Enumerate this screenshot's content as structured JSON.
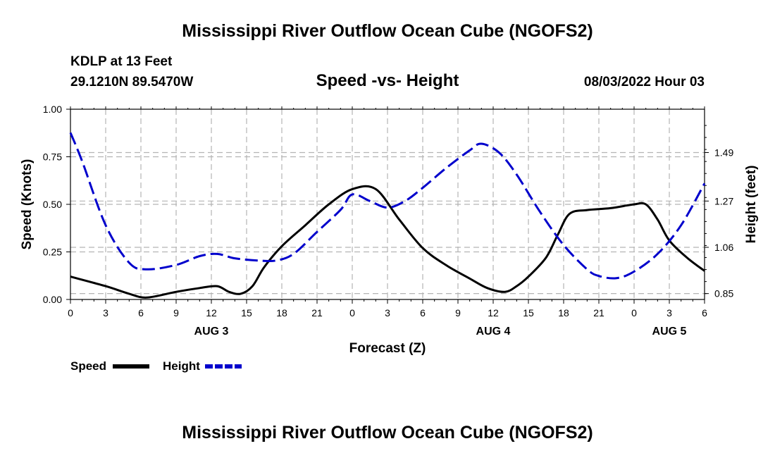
{
  "page_title": "Mississippi River Outflow Ocean Cube (NGOFS2)",
  "station": "KDLP at 13 Feet",
  "location": "29.1210N  89.5470W",
  "timestamp": "08/03/2022 Hour 03",
  "footer_title": "Mississippi River Outflow Ocean Cube (NGOFS2)",
  "colors": {
    "speed": "#000000",
    "height": "#0000cc",
    "grid": "#b4b4b4"
  },
  "chart_data": {
    "type": "line",
    "title": "Speed -vs- Height",
    "xlabel": "Forecast (Z)",
    "ylabel": "Speed (Knots)",
    "y2label": "Height (feet)",
    "xlim": [
      0,
      54
    ],
    "ylim": [
      0,
      1
    ],
    "y2lim": [
      0.8233,
      1.6867
    ],
    "x_ticks": [
      0,
      3,
      6,
      9,
      12,
      15,
      18,
      21,
      24,
      27,
      30,
      33,
      36,
      39,
      42,
      45,
      48,
      51,
      54
    ],
    "x_tick_labels": [
      "0",
      "3",
      "6",
      "9",
      "12",
      "15",
      "18",
      "21",
      "0",
      "3",
      "6",
      "9",
      "12",
      "15",
      "18",
      "21",
      "0",
      "3",
      "6"
    ],
    "date_labels": [
      {
        "x": 12,
        "label": "AUG 3"
      },
      {
        "x": 36,
        "label": "AUG 4"
      },
      {
        "x": 51,
        "label": "AUG 5"
      }
    ],
    "y_ticks": [
      0,
      0.25,
      0.5,
      0.75,
      1.0
    ],
    "y_tick_labels": [
      "0.00",
      "0.25",
      "0.50",
      "0.75",
      "1.00"
    ],
    "y2_ticks": [
      0.85,
      1.06,
      1.27,
      1.49
    ],
    "y2_tick_labels": [
      "0.85",
      "1.06",
      "1.27",
      "1.49"
    ],
    "series": [
      {
        "name": "Speed",
        "axis": "left",
        "style": "solid",
        "x": [
          0,
          3,
          5,
          6.5,
          9,
          11,
          12.5,
          13.5,
          14.5,
          15.5,
          16.5,
          18,
          20,
          22,
          24,
          26,
          28,
          30,
          32,
          34,
          35.5,
          37,
          38,
          39,
          40.5,
          41.5,
          42.5,
          44,
          46,
          48,
          49,
          50,
          51,
          52.5,
          54
        ],
        "values": [
          0.12,
          0.07,
          0.03,
          0.01,
          0.04,
          0.06,
          0.07,
          0.04,
          0.03,
          0.07,
          0.17,
          0.28,
          0.39,
          0.5,
          0.58,
          0.58,
          0.42,
          0.27,
          0.18,
          0.11,
          0.06,
          0.04,
          0.07,
          0.12,
          0.22,
          0.34,
          0.45,
          0.47,
          0.48,
          0.5,
          0.5,
          0.42,
          0.31,
          0.22,
          0.15
        ]
      },
      {
        "name": "Height",
        "axis": "right",
        "style": "dashed",
        "x": [
          0,
          1,
          3,
          5,
          6.5,
          9,
          11,
          12.5,
          14,
          16,
          17.5,
          19,
          21,
          23,
          24,
          25.5,
          27,
          28.5,
          30,
          32,
          34,
          35,
          36.5,
          38,
          40,
          42,
          44,
          45,
          46.5,
          48,
          50,
          52,
          54
        ],
        "values": [
          1.58,
          1.45,
          1.16,
          0.99,
          0.96,
          0.98,
          1.02,
          1.03,
          1.01,
          1.0,
          1.0,
          1.03,
          1.13,
          1.23,
          1.3,
          1.27,
          1.24,
          1.27,
          1.33,
          1.42,
          1.5,
          1.53,
          1.49,
          1.39,
          1.22,
          1.07,
          0.96,
          0.93,
          0.92,
          0.95,
          1.03,
          1.16,
          1.35
        ]
      }
    ]
  }
}
